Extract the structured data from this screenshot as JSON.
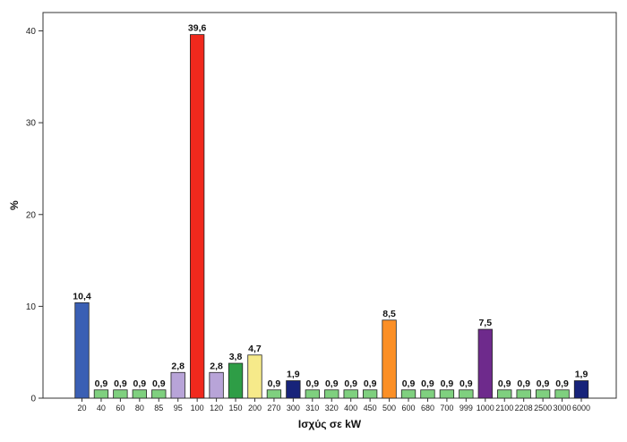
{
  "chart_data": {
    "type": "bar",
    "title": "",
    "xlabel": "Ισχύς σε kW",
    "ylabel": "%",
    "ylim": [
      0,
      42
    ],
    "yticks": [
      0,
      10,
      20,
      30,
      40
    ],
    "grid": false,
    "categories": [
      "20",
      "40",
      "60",
      "80",
      "85",
      "95",
      "100",
      "120",
      "150",
      "200",
      "270",
      "300",
      "310",
      "320",
      "400",
      "450",
      "500",
      "600",
      "680",
      "700",
      "999",
      "1000",
      "2100",
      "2208",
      "2500",
      "3000",
      "6000"
    ],
    "values": [
      10.4,
      0.9,
      0.9,
      0.9,
      0.9,
      2.8,
      39.6,
      2.8,
      3.8,
      4.7,
      0.9,
      1.9,
      0.9,
      0.9,
      0.9,
      0.9,
      8.5,
      0.9,
      0.9,
      0.9,
      0.9,
      7.5,
      0.9,
      0.9,
      0.9,
      0.9,
      1.9
    ],
    "data_labels": [
      "10,4",
      "0,9",
      "0,9",
      "0,9",
      "0,9",
      "2,8",
      "39,6",
      "2,8",
      "3,8",
      "4,7",
      "0,9",
      "1,9",
      "0,9",
      "0,9",
      "0,9",
      "0,9",
      "8,5",
      "0,9",
      "0,9",
      "0,9",
      "0,9",
      "7,5",
      "0,9",
      "0,9",
      "0,9",
      "0,9",
      "1,9"
    ],
    "colors": [
      "#3a5fb4",
      "#7fd07f",
      "#7fd07f",
      "#7fd07f",
      "#7fd07f",
      "#b8a4d8",
      "#f0291d",
      "#b8a4d8",
      "#2e9d46",
      "#f6ea8a",
      "#7fd07f",
      "#17237a",
      "#7fd07f",
      "#7fd07f",
      "#7fd07f",
      "#7fd07f",
      "#fb8f26",
      "#7fd07f",
      "#7fd07f",
      "#7fd07f",
      "#7fd07f",
      "#6e2a8c",
      "#7fd07f",
      "#7fd07f",
      "#7fd07f",
      "#7fd07f",
      "#17237a"
    ]
  }
}
